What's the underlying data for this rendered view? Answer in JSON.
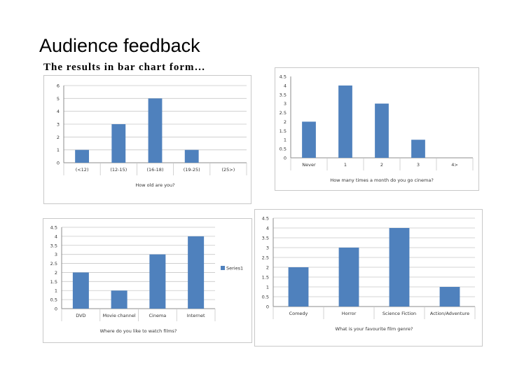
{
  "slide": {
    "title": "Audience feedback",
    "subtitle": "The results in bar chart form…"
  },
  "colors": {
    "bar": "#4f81bd",
    "grid": "#c8c8c8",
    "axis": "#8c8c8c"
  },
  "chart_data": [
    {
      "type": "bar",
      "categories": [
        "(<12)",
        "(12-15)",
        "(16-18)",
        "(19-25)",
        "(25>)"
      ],
      "values": [
        1,
        3,
        5,
        1,
        0
      ],
      "ylim": [
        0,
        6
      ],
      "yticks": [
        "0",
        "1",
        "2",
        "3",
        "4",
        "5",
        "6"
      ],
      "xlabel": "How old are you?",
      "grid": true
    },
    {
      "type": "bar",
      "categories": [
        "Never",
        "1",
        "2",
        "3",
        "4>"
      ],
      "values": [
        2,
        4,
        3,
        1,
        0
      ],
      "ylim": [
        0,
        4.5
      ],
      "yticks": [
        "0",
        "0.5",
        "1",
        "1.5",
        "2",
        "2.5",
        "3",
        "3.5",
        "4",
        "4.5"
      ],
      "xlabel": "How many times a month do you go cinema?",
      "grid": false
    },
    {
      "type": "bar",
      "categories": [
        "DVD",
        "Movie channel",
        "Cinema",
        "Internet"
      ],
      "values": [
        2,
        1,
        3,
        4
      ],
      "ylim": [
        0,
        4.5
      ],
      "yticks": [
        "0",
        "0.5",
        "1",
        "1.5",
        "2",
        "2.5",
        "3",
        "3.5",
        "4",
        "4.5"
      ],
      "xlabel": "Where do you like to watch films?",
      "legend": "Series1",
      "grid": true
    },
    {
      "type": "bar",
      "categories": [
        "Comedy",
        "Horror",
        "Science Fiction",
        "Action/Adventure"
      ],
      "values": [
        2,
        3,
        4,
        1
      ],
      "ylim": [
        0,
        4.5
      ],
      "yticks": [
        "0",
        "0.5",
        "1",
        "1.5",
        "2",
        "2.5",
        "3",
        "3.5",
        "4",
        "4.5"
      ],
      "xlabel": "What is your favourite film genre?",
      "grid": true
    }
  ]
}
